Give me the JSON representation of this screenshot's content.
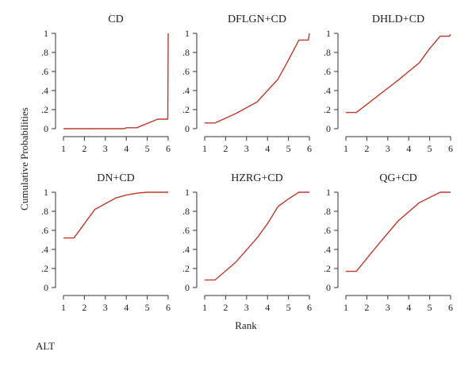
{
  "figure": {
    "ylabel": "Cumulative Probabilities",
    "xlabel": "Rank",
    "footnote": "ALT",
    "line_color": "#c0392b"
  },
  "chart_data": [
    {
      "type": "line",
      "title": "CD",
      "xlim": [
        1,
        6
      ],
      "ylim": [
        0,
        1
      ],
      "x_ticks": [
        "1",
        "2",
        "3",
        "4",
        "5",
        "6"
      ],
      "y_ticks": [
        "0",
        ".2",
        ".4",
        ".6",
        ".8",
        "1"
      ],
      "x": [
        1,
        3.9,
        4.0,
        4.5,
        5.5,
        5.98,
        6.0
      ],
      "values": [
        0.0,
        0.0,
        0.01,
        0.01,
        0.1,
        0.1,
        1.0
      ]
    },
    {
      "type": "line",
      "title": "DFLGN+CD",
      "xlim": [
        1,
        6
      ],
      "ylim": [
        0,
        1
      ],
      "x_ticks": [
        "1",
        "2",
        "3",
        "4",
        "5",
        "6"
      ],
      "y_ticks": [
        "0",
        ".2",
        ".4",
        ".6",
        ".8",
        "1"
      ],
      "x": [
        1,
        1.5,
        2.5,
        3.5,
        4.0,
        4.5,
        5.0,
        5.5,
        5.95,
        6.0
      ],
      "values": [
        0.06,
        0.06,
        0.16,
        0.28,
        0.4,
        0.52,
        0.72,
        0.93,
        0.93,
        1.0
      ]
    },
    {
      "type": "line",
      "title": "DHLD+CD",
      "xlim": [
        1,
        6
      ],
      "ylim": [
        0,
        1
      ],
      "x_ticks": [
        "1",
        "2",
        "3",
        "4",
        "5",
        "6"
      ],
      "y_ticks": [
        "0",
        ".2",
        ".4",
        ".6",
        ".8",
        "1"
      ],
      "x": [
        1,
        1.5,
        2.5,
        3.5,
        4.5,
        5.0,
        5.5,
        5.95,
        6.0
      ],
      "values": [
        0.17,
        0.17,
        0.34,
        0.51,
        0.69,
        0.84,
        0.97,
        0.97,
        0.99
      ]
    },
    {
      "type": "line",
      "title": "DN+CD",
      "xlim": [
        1,
        6
      ],
      "ylim": [
        0,
        1
      ],
      "x_ticks": [
        "1",
        "2",
        "3",
        "4",
        "5",
        "6"
      ],
      "y_ticks": [
        "0",
        ".2",
        ".4",
        ".6",
        ".8",
        "1"
      ],
      "x": [
        1,
        1.5,
        2.0,
        2.5,
        3.0,
        3.5,
        4.0,
        4.5,
        5.0,
        5.5,
        6.0
      ],
      "values": [
        0.52,
        0.52,
        0.67,
        0.82,
        0.88,
        0.94,
        0.97,
        0.99,
        1.0,
        1.0,
        1.0
      ]
    },
    {
      "type": "line",
      "title": "HZRG+CD",
      "xlim": [
        1,
        6
      ],
      "ylim": [
        0,
        1
      ],
      "x_ticks": [
        "1",
        "2",
        "3",
        "4",
        "5",
        "6"
      ],
      "y_ticks": [
        "0",
        ".2",
        ".4",
        ".6",
        ".8",
        "1"
      ],
      "x": [
        1,
        1.5,
        2.5,
        3.5,
        4.0,
        4.5,
        5.0,
        5.5,
        6.0
      ],
      "values": [
        0.08,
        0.08,
        0.27,
        0.52,
        0.67,
        0.85,
        0.93,
        1.0,
        1.0
      ]
    },
    {
      "type": "line",
      "title": "QG+CD",
      "xlim": [
        1,
        6
      ],
      "ylim": [
        0,
        1
      ],
      "x_ticks": [
        "1",
        "2",
        "3",
        "4",
        "5",
        "6"
      ],
      "y_ticks": [
        "0",
        ".2",
        ".4",
        ".6",
        ".8",
        "1"
      ],
      "x": [
        1,
        1.5,
        2.5,
        3.5,
        4.5,
        5.5,
        6.0
      ],
      "values": [
        0.17,
        0.17,
        0.44,
        0.7,
        0.89,
        1.0,
        1.0
      ]
    }
  ]
}
